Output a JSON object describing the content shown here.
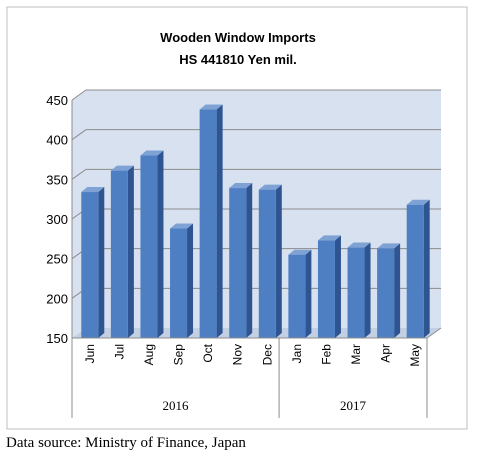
{
  "chart_data": {
    "type": "bar",
    "title": "Wooden Window Imports",
    "subtitle": "HS 441810 Yen mil.",
    "categories": [
      "Jun",
      "Jul",
      "Aug",
      "Sep",
      "Oct",
      "Nov",
      "Dec",
      "Jan",
      "Feb",
      "Mar",
      "Apr",
      "May"
    ],
    "groups": [
      {
        "label": "2016",
        "categories": [
          "Jun",
          "Jul",
          "Aug",
          "Sep",
          "Oct",
          "Nov",
          "Dec"
        ]
      },
      {
        "label": "2017",
        "categories": [
          "Jan",
          "Feb",
          "Mar",
          "Apr",
          "May"
        ]
      }
    ],
    "values": [
      334,
      361,
      380,
      288,
      438,
      339,
      337,
      255,
      273,
      264,
      263,
      318
    ],
    "yticks": [
      150,
      200,
      250,
      300,
      350,
      400,
      450
    ],
    "ylim": [
      150,
      450
    ],
    "grid": true,
    "legend": "none",
    "bar_color": "#4F7FC3",
    "plot_background": "#D7E1EF"
  },
  "source_note": "Data source: Ministry of Finance, Japan"
}
